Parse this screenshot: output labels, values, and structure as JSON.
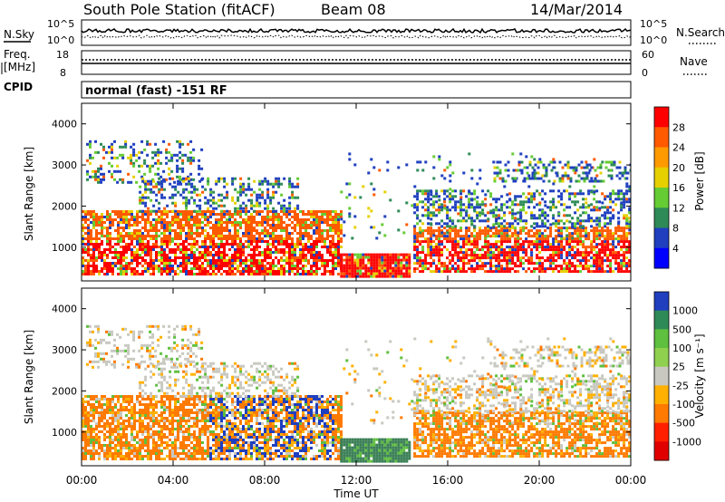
{
  "header": {
    "title": "South Pole Station (fitACF)",
    "beam": "Beam 08",
    "date": "14/Mar/2014"
  },
  "top_panels": {
    "nsky_label": "N.Sky",
    "nsky_ticks": [
      "10^5",
      "10^0"
    ],
    "nsearch_label": "N.Search",
    "nsearch_ticks": [
      "10^5",
      "10^0"
    ],
    "freq_label_1": "Freq.",
    "freq_label_2": "[MHz]",
    "freq_ticks": [
      "18",
      "8"
    ],
    "nave_label": "Nave",
    "nave_ticks": [
      "60",
      "0"
    ],
    "cpid_label": "CPID",
    "cpid_text": "normal (fast) -151 RF"
  },
  "chart_data": [
    {
      "type": "heatmap",
      "name": "power",
      "ylabel": "Slant Range [km]",
      "ylim": [
        180,
        4500
      ],
      "yticks": [
        "1000",
        "2000",
        "3000",
        "4000"
      ],
      "colorbar_label": "Power [dB]",
      "colorbar_ticks": [
        "28",
        "24",
        "20",
        "16",
        "12",
        "8",
        "4"
      ],
      "colorbar_colors": [
        "#ff0000",
        "#ff5a00",
        "#ff9a00",
        "#e6d000",
        "#66cc33",
        "#2e8b57",
        "#1f3fbf",
        "#0000ff"
      ]
    },
    {
      "type": "heatmap",
      "name": "velocity",
      "ylabel": "Slant Range [km]",
      "ylim": [
        180,
        4500
      ],
      "yticks": [
        "1000",
        "2000",
        "3000",
        "4000"
      ],
      "colorbar_label": "Velocity [m s⁻¹]",
      "colorbar_ticks": [
        "1000",
        "500",
        "100",
        "25",
        "-25",
        "-100",
        "-500",
        "-1000"
      ],
      "colorbar_colors": [
        "#1f3fbf",
        "#2e8b57",
        "#5fbf3f",
        "#8fd14f",
        "#c8c8c0",
        "#ffb000",
        "#ff7a00",
        "#ff2000",
        "#e00000"
      ]
    }
  ],
  "x_axis": {
    "ticks": [
      "00:00",
      "04:00",
      "08:00",
      "12:00",
      "16:00",
      "20:00",
      "00:00"
    ],
    "label": "Time UT"
  }
}
